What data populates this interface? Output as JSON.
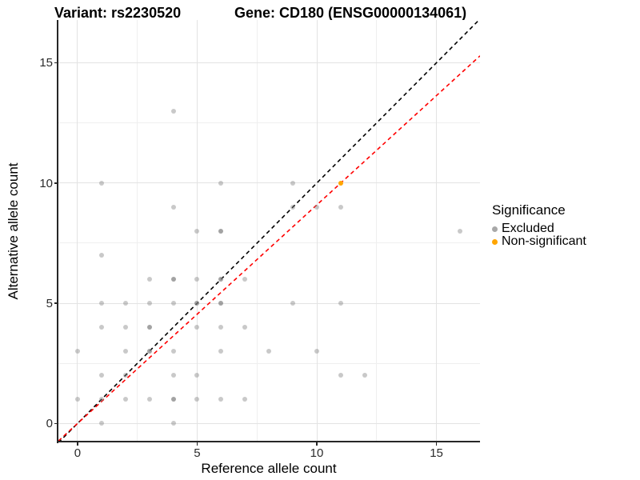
{
  "titles": {
    "variant": "Variant: rs2230520",
    "gene": "Gene: CD180 (ENSG00000134061)"
  },
  "chart_data": {
    "type": "scatter",
    "xlabel": "Reference allele count",
    "ylabel": "Alternative allele count",
    "x_ticks": [
      0,
      5,
      10,
      15
    ],
    "y_ticks": [
      0,
      5,
      10,
      15
    ],
    "x_minor": [
      2.5,
      7.5,
      12.5
    ],
    "y_minor": [
      2.5,
      7.5,
      12.5
    ],
    "x_domain": [
      -0.8,
      16.82
    ],
    "y_domain": [
      -0.755,
      16.78
    ],
    "grid": "on",
    "legend_position": "right",
    "series": [
      {
        "name": "Excluded",
        "color": "#7f7f7f",
        "points": [
          [
            4,
            13
          ],
          [
            1,
            10
          ],
          [
            6,
            10
          ],
          [
            9,
            10
          ],
          [
            4,
            9
          ],
          [
            9,
            9
          ],
          [
            10,
            9
          ],
          [
            11,
            9
          ],
          [
            5,
            8
          ],
          [
            6,
            8
          ],
          [
            16,
            8
          ],
          [
            1,
            7
          ],
          [
            3,
            6
          ],
          [
            4,
            6
          ],
          [
            5,
            6
          ],
          [
            6,
            6
          ],
          [
            7,
            6
          ],
          [
            1,
            5
          ],
          [
            2,
            5
          ],
          [
            3,
            5
          ],
          [
            4,
            5
          ],
          [
            5,
            5
          ],
          [
            6,
            5
          ],
          [
            9,
            5
          ],
          [
            11,
            5
          ],
          [
            1,
            4
          ],
          [
            2,
            4
          ],
          [
            3,
            4
          ],
          [
            5,
            4
          ],
          [
            6,
            4
          ],
          [
            7,
            4
          ],
          [
            0,
            3
          ],
          [
            2,
            3
          ],
          [
            3,
            3
          ],
          [
            4,
            3
          ],
          [
            6,
            3
          ],
          [
            8,
            3
          ],
          [
            10,
            3
          ],
          [
            1,
            2
          ],
          [
            2,
            2
          ],
          [
            4,
            2
          ],
          [
            5,
            2
          ],
          [
            11,
            2
          ],
          [
            12,
            2
          ],
          [
            0,
            1
          ],
          [
            1,
            1
          ],
          [
            2,
            1
          ],
          [
            3,
            1
          ],
          [
            4,
            1
          ],
          [
            5,
            1
          ],
          [
            6,
            1
          ],
          [
            7,
            1
          ],
          [
            1,
            0
          ],
          [
            4,
            0
          ]
        ]
      },
      {
        "name": "Non-significant",
        "color": "#FFA500",
        "points": [
          [
            11,
            10
          ]
        ]
      }
    ],
    "dense_points": [
      [
        4,
        6
      ],
      [
        6,
        6
      ],
      [
        5,
        5
      ],
      [
        6,
        5
      ],
      [
        3,
        4
      ],
      [
        3,
        3
      ],
      [
        4,
        1
      ],
      [
        6,
        8
      ]
    ],
    "lines": [
      {
        "name": "identity",
        "slope": 1.0,
        "intercept": 0,
        "color": "#000000",
        "style": "dashed"
      },
      {
        "name": "fit",
        "slope": 0.909,
        "intercept": 0,
        "color": "#FF0000",
        "style": "dashed"
      }
    ],
    "legend": {
      "title": "Significance",
      "entries": [
        {
          "label": "Excluded",
          "color": "#a8a8a8"
        },
        {
          "label": "Non-significant",
          "color": "#FFA500"
        }
      ]
    }
  }
}
